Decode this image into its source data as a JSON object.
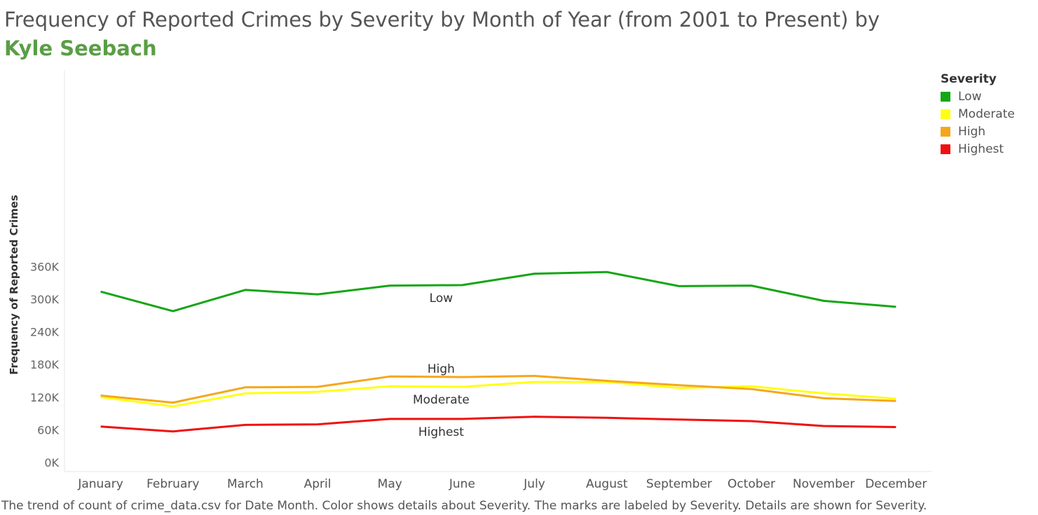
{
  "title": {
    "text": "Frequency of Reported Crimes by Severity by Month of Year (from 2001 to Present) by ",
    "author": "Kyle Seebach"
  },
  "caption": "The trend of count of crime_data.csv for Date Month.  Color shows details about Severity.  The marks are labeled by Severity.  Details are shown for Severity.",
  "legend": {
    "title": "Severity",
    "items": [
      {
        "label": "Low",
        "color": "#14a614"
      },
      {
        "label": "Moderate",
        "color": "#ffff14"
      },
      {
        "label": "High",
        "color": "#f5a71c"
      },
      {
        "label": "Highest",
        "color": "#f01010"
      }
    ]
  },
  "chart_data": {
    "type": "line",
    "ylabel": "Frequency of Reported Crimes",
    "ylim": [
      0,
      370000
    ],
    "yticks": [
      {
        "value": 0,
        "label": "0K"
      },
      {
        "value": 60000,
        "label": "60K"
      },
      {
        "value": 120000,
        "label": "120K"
      },
      {
        "value": 180000,
        "label": "180K"
      },
      {
        "value": 240000,
        "label": "240K"
      },
      {
        "value": 300000,
        "label": "300K"
      },
      {
        "value": 360000,
        "label": "360K"
      }
    ],
    "categories": [
      "January",
      "February",
      "March",
      "April",
      "May",
      "June",
      "July",
      "August",
      "September",
      "October",
      "November",
      "December"
    ],
    "series": [
      {
        "name": "Low",
        "color": "#14a614",
        "label_index": 5,
        "label_position": "below",
        "values": [
          314000,
          278000,
          317000,
          309000,
          325000,
          326000,
          347000,
          350000,
          324000,
          325000,
          297000,
          286000
        ]
      },
      {
        "name": "Moderate",
        "color": "#ffff14",
        "label_index": 5,
        "label_position": "below",
        "values": [
          120000,
          103000,
          127000,
          130000,
          140000,
          139000,
          148000,
          148000,
          137000,
          140000,
          127000,
          117000
        ]
      },
      {
        "name": "High",
        "color": "#f5a71c",
        "label_index": 5,
        "label_position": "above",
        "values": [
          123000,
          110000,
          138000,
          139000,
          158000,
          157000,
          159000,
          150000,
          142000,
          135000,
          118000,
          113000
        ]
      },
      {
        "name": "Highest",
        "color": "#f01010",
        "label_index": 5,
        "label_position": "below",
        "values": [
          66000,
          57000,
          69000,
          70000,
          80000,
          80000,
          84000,
          82000,
          79000,
          76000,
          67000,
          65000
        ]
      }
    ],
    "grid": false,
    "legend_position": "right"
  }
}
